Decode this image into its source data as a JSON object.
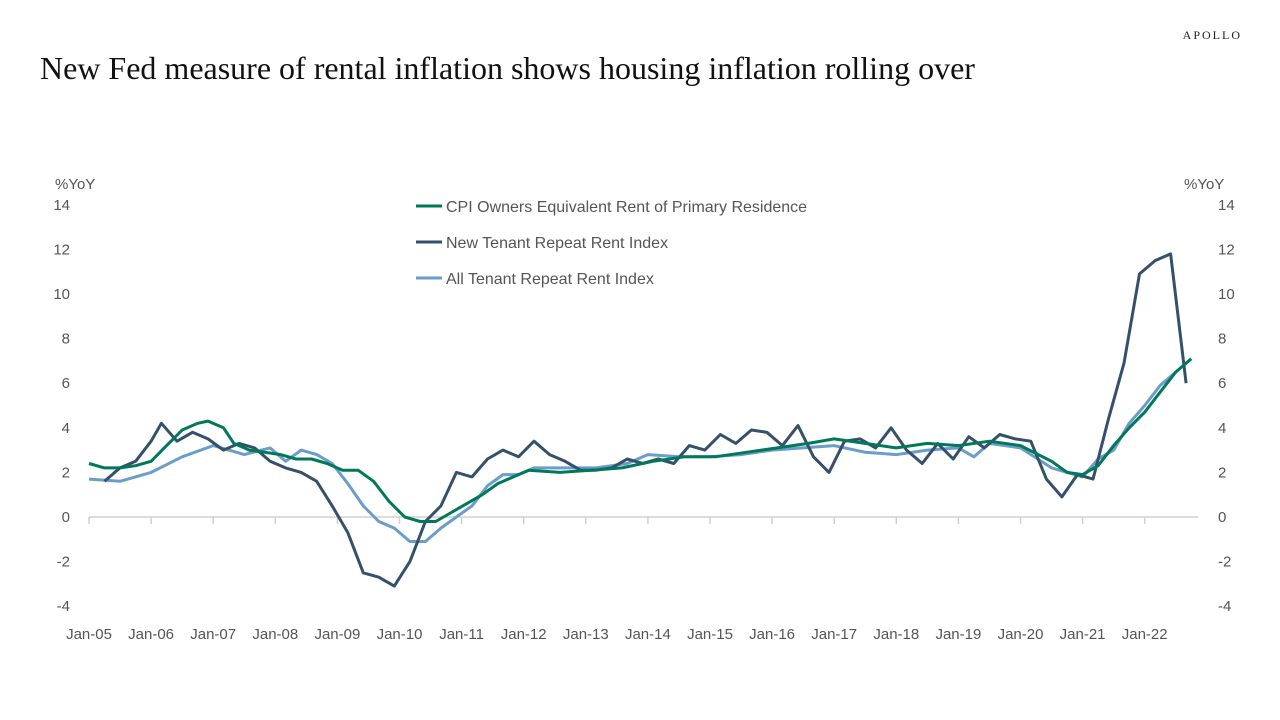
{
  "brand": "APOLLO",
  "title": "New Fed measure of  rental inflation shows housing inflation rolling over",
  "chart_data": {
    "type": "line",
    "title": "New Fed measure of  rental inflation shows housing inflation rolling over",
    "ylabel_left": "%YoY",
    "ylabel_right": "%YoY",
    "ylim": [
      -4,
      14
    ],
    "yticks": [
      14,
      12,
      10,
      8,
      6,
      4,
      2,
      0,
      -2,
      -4
    ],
    "xticks": [
      "Jan-05",
      "Jan-06",
      "Jan-07",
      "Jan-08",
      "Jan-09",
      "Jan-10",
      "Jan-11",
      "Jan-12",
      "Jan-13",
      "Jan-14",
      "Jan-15",
      "Jan-16",
      "Jan-17",
      "Jan-18",
      "Jan-19",
      "Jan-20",
      "Jan-21",
      "Jan-22"
    ],
    "grid": false,
    "legend_position": "top-center",
    "series": [
      {
        "name": "CPI Owners Equivalent Rent of Primary Residence",
        "color": "#00785a",
        "points": [
          [
            "2005-01",
            2.4
          ],
          [
            "2005-04",
            2.2
          ],
          [
            "2005-07",
            2.2
          ],
          [
            "2005-10",
            2.3
          ],
          [
            "2006-01",
            2.5
          ],
          [
            "2006-04",
            3.2
          ],
          [
            "2006-07",
            3.9
          ],
          [
            "2006-10",
            4.2
          ],
          [
            "2006-12",
            4.3
          ],
          [
            "2007-03",
            4.0
          ],
          [
            "2007-05",
            3.3
          ],
          [
            "2007-08",
            3.0
          ],
          [
            "2007-11",
            2.9
          ],
          [
            "2008-02",
            2.8
          ],
          [
            "2008-05",
            2.6
          ],
          [
            "2008-08",
            2.6
          ],
          [
            "2008-11",
            2.4
          ],
          [
            "2009-02",
            2.1
          ],
          [
            "2009-05",
            2.1
          ],
          [
            "2009-08",
            1.6
          ],
          [
            "2009-11",
            0.7
          ],
          [
            "2010-02",
            0.0
          ],
          [
            "2010-05",
            -0.2
          ],
          [
            "2010-08",
            -0.2
          ],
          [
            "2010-11",
            0.2
          ],
          [
            "2011-02",
            0.6
          ],
          [
            "2011-05",
            1.0
          ],
          [
            "2011-08",
            1.5
          ],
          [
            "2011-11",
            1.8
          ],
          [
            "2012-02",
            2.1
          ],
          [
            "2012-08",
            2.0
          ],
          [
            "2013-02",
            2.1
          ],
          [
            "2013-08",
            2.2
          ],
          [
            "2014-02",
            2.5
          ],
          [
            "2014-08",
            2.7
          ],
          [
            "2015-02",
            2.7
          ],
          [
            "2015-08",
            2.9
          ],
          [
            "2016-02",
            3.1
          ],
          [
            "2016-08",
            3.3
          ],
          [
            "2017-01",
            3.5
          ],
          [
            "2017-07",
            3.3
          ],
          [
            "2018-01",
            3.1
          ],
          [
            "2018-07",
            3.3
          ],
          [
            "2019-01",
            3.2
          ],
          [
            "2019-07",
            3.4
          ],
          [
            "2020-01",
            3.2
          ],
          [
            "2020-07",
            2.5
          ],
          [
            "2020-10",
            2.0
          ],
          [
            "2021-01",
            1.9
          ],
          [
            "2021-04",
            2.3
          ],
          [
            "2021-07",
            3.2
          ],
          [
            "2021-10",
            4.0
          ],
          [
            "2022-01",
            4.7
          ],
          [
            "2022-04",
            5.6
          ],
          [
            "2022-07",
            6.5
          ],
          [
            "2022-10",
            7.1
          ]
        ]
      },
      {
        "name": "New Tenant Repeat Rent Index",
        "color": "#34506b",
        "points": [
          [
            "2005-04",
            1.6
          ],
          [
            "2005-07",
            2.2
          ],
          [
            "2005-10",
            2.5
          ],
          [
            "2006-01",
            3.4
          ],
          [
            "2006-03",
            4.2
          ],
          [
            "2006-06",
            3.4
          ],
          [
            "2006-09",
            3.8
          ],
          [
            "2006-12",
            3.5
          ],
          [
            "2007-03",
            3.0
          ],
          [
            "2007-06",
            3.3
          ],
          [
            "2007-09",
            3.1
          ],
          [
            "2007-12",
            2.5
          ],
          [
            "2008-03",
            2.2
          ],
          [
            "2008-06",
            2.0
          ],
          [
            "2008-09",
            1.6
          ],
          [
            "2008-12",
            0.5
          ],
          [
            "2009-03",
            -0.7
          ],
          [
            "2009-06",
            -2.5
          ],
          [
            "2009-09",
            -2.7
          ],
          [
            "2009-12",
            -3.1
          ],
          [
            "2010-03",
            -2.0
          ],
          [
            "2010-06",
            -0.2
          ],
          [
            "2010-09",
            0.5
          ],
          [
            "2010-12",
            2.0
          ],
          [
            "2011-03",
            1.8
          ],
          [
            "2011-06",
            2.6
          ],
          [
            "2011-09",
            3.0
          ],
          [
            "2011-12",
            2.7
          ],
          [
            "2012-03",
            3.4
          ],
          [
            "2012-06",
            2.8
          ],
          [
            "2012-09",
            2.5
          ],
          [
            "2012-12",
            2.1
          ],
          [
            "2013-03",
            2.1
          ],
          [
            "2013-06",
            2.2
          ],
          [
            "2013-09",
            2.6
          ],
          [
            "2013-12",
            2.4
          ],
          [
            "2014-03",
            2.6
          ],
          [
            "2014-06",
            2.4
          ],
          [
            "2014-09",
            3.2
          ],
          [
            "2014-12",
            3.0
          ],
          [
            "2015-03",
            3.7
          ],
          [
            "2015-06",
            3.3
          ],
          [
            "2015-09",
            3.9
          ],
          [
            "2015-12",
            3.8
          ],
          [
            "2016-03",
            3.2
          ],
          [
            "2016-06",
            4.1
          ],
          [
            "2016-09",
            2.7
          ],
          [
            "2016-12",
            2.0
          ],
          [
            "2017-03",
            3.4
          ],
          [
            "2017-06",
            3.5
          ],
          [
            "2017-09",
            3.1
          ],
          [
            "2017-12",
            4.0
          ],
          [
            "2018-03",
            3.0
          ],
          [
            "2018-06",
            2.4
          ],
          [
            "2018-09",
            3.3
          ],
          [
            "2018-12",
            2.6
          ],
          [
            "2019-03",
            3.6
          ],
          [
            "2019-06",
            3.1
          ],
          [
            "2019-09",
            3.7
          ],
          [
            "2019-12",
            3.5
          ],
          [
            "2020-03",
            3.4
          ],
          [
            "2020-06",
            1.7
          ],
          [
            "2020-09",
            0.9
          ],
          [
            "2020-12",
            1.9
          ],
          [
            "2021-03",
            1.7
          ],
          [
            "2021-06",
            4.4
          ],
          [
            "2021-09",
            6.9
          ],
          [
            "2021-12",
            10.9
          ],
          [
            "2022-03",
            11.5
          ],
          [
            "2022-06",
            11.8
          ],
          [
            "2022-09",
            6.0
          ]
        ]
      },
      {
        "name": "All Tenant Repeat Rent Index",
        "color": "#6b9dcb",
        "points": [
          [
            "2005-01",
            1.7
          ],
          [
            "2005-07",
            1.6
          ],
          [
            "2006-01",
            2.0
          ],
          [
            "2006-07",
            2.7
          ],
          [
            "2007-01",
            3.2
          ],
          [
            "2007-07",
            2.8
          ],
          [
            "2007-12",
            3.1
          ],
          [
            "2008-03",
            2.5
          ],
          [
            "2008-06",
            3.0
          ],
          [
            "2008-09",
            2.8
          ],
          [
            "2008-12",
            2.4
          ],
          [
            "2009-03",
            1.5
          ],
          [
            "2009-06",
            0.5
          ],
          [
            "2009-09",
            -0.2
          ],
          [
            "2009-12",
            -0.5
          ],
          [
            "2010-03",
            -1.1
          ],
          [
            "2010-06",
            -1.1
          ],
          [
            "2010-09",
            -0.5
          ],
          [
            "2010-12",
            0.0
          ],
          [
            "2011-03",
            0.5
          ],
          [
            "2011-06",
            1.4
          ],
          [
            "2011-09",
            1.9
          ],
          [
            "2011-12",
            1.9
          ],
          [
            "2012-03",
            2.2
          ],
          [
            "2012-09",
            2.2
          ],
          [
            "2013-03",
            2.2
          ],
          [
            "2013-09",
            2.4
          ],
          [
            "2014-01",
            2.8
          ],
          [
            "2014-07",
            2.7
          ],
          [
            "2015-01",
            2.7
          ],
          [
            "2015-07",
            2.8
          ],
          [
            "2016-01",
            3.0
          ],
          [
            "2016-07",
            3.1
          ],
          [
            "2017-01",
            3.2
          ],
          [
            "2017-07",
            2.9
          ],
          [
            "2018-01",
            2.8
          ],
          [
            "2018-07",
            3.0
          ],
          [
            "2019-01",
            3.1
          ],
          [
            "2019-04",
            2.7
          ],
          [
            "2019-07",
            3.3
          ],
          [
            "2020-01",
            3.1
          ],
          [
            "2020-07",
            2.2
          ],
          [
            "2020-10",
            2.0
          ],
          [
            "2021-01",
            1.8
          ],
          [
            "2021-04",
            2.6
          ],
          [
            "2021-07",
            3.0
          ],
          [
            "2021-10",
            4.2
          ],
          [
            "2022-01",
            5.0
          ],
          [
            "2022-04",
            5.9
          ],
          [
            "2022-07",
            6.5
          ]
        ]
      }
    ]
  }
}
